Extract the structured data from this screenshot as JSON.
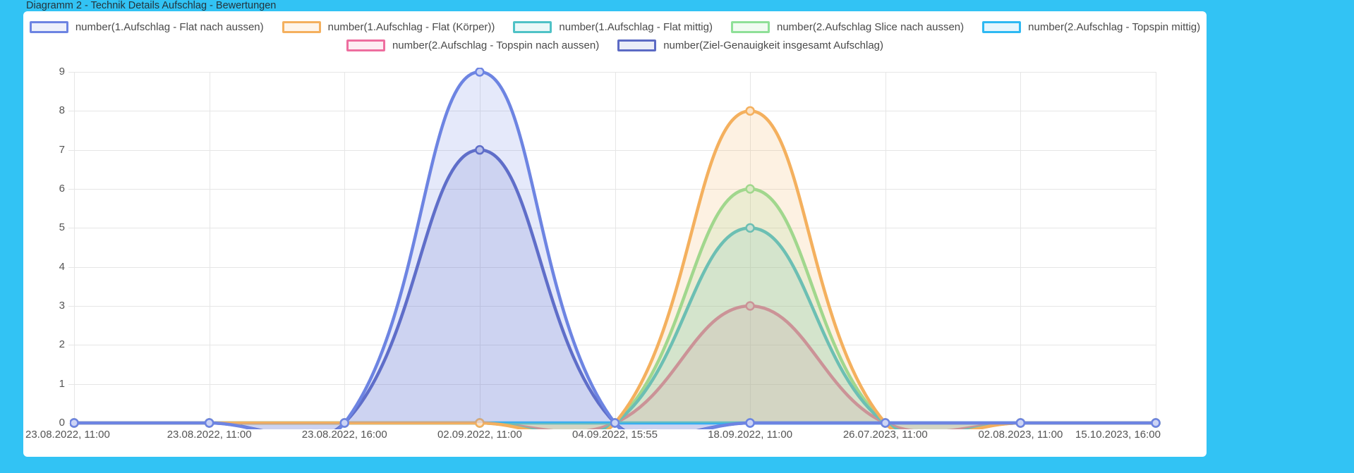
{
  "page": {
    "title": "Diagramm 2 - Technik Details Aufschlag - Bewertungen"
  },
  "colors": {
    "background": "#32c3f4",
    "panel": "#ffffff",
    "title_text": "#23343c",
    "legend_text": "#4a4a4a",
    "axis_text": "#545454",
    "grid": "#e6e6e6"
  },
  "chart_data": {
    "type": "line",
    "title": "Diagramm 2 - Technik Details Aufschlag - Bewertungen",
    "x": [
      "23.08.2022, 11:00",
      "23.08.2022, 11:00",
      "23.08.2022, 16:00",
      "02.09.2022, 11:00",
      "04.09.2022, 15:55",
      "18.09.2022, 11:00",
      "26.07.2023, 11:00",
      "02.08.2023, 11:00",
      "15.10.2023, 16:00"
    ],
    "xlabel": "",
    "ylabel": "",
    "ylim": [
      0,
      9
    ],
    "yticks": [
      0,
      1,
      2,
      3,
      4,
      5,
      6,
      7,
      8,
      9
    ],
    "grid": true,
    "legend_position": "top",
    "curve": "smooth",
    "series": [
      {
        "name": "number(1.Aufschlag - Flat nach aussen)",
        "color": "#6d84e2",
        "values": [
          0,
          0,
          0,
          9,
          0,
          0,
          0,
          0,
          0
        ]
      },
      {
        "name": "number(1.Aufschlag - Flat (Körper))",
        "color": "#f4b05e",
        "values": [
          0,
          0,
          0,
          0,
          0,
          8,
          0,
          0,
          0
        ]
      },
      {
        "name": "number(1.Aufschlag - Flat mittig)",
        "color": "#4fc2c6",
        "values": [
          0,
          0,
          0,
          0,
          0,
          5,
          0,
          0,
          0
        ]
      },
      {
        "name": "number(2.Aufschlag Slice nach aussen)",
        "color": "#8fe098",
        "values": [
          0,
          0,
          0,
          0,
          0,
          6,
          0,
          0,
          0
        ]
      },
      {
        "name": "number(2.Aufschlag - Topspin mittig)",
        "color": "#2eb9f2",
        "values": [
          0,
          0,
          0,
          0,
          0,
          0,
          0,
          0,
          0
        ]
      },
      {
        "name": "number(2.Aufschlag - Topspin nach aussen)",
        "color": "#ee6e9f",
        "values": [
          0,
          0,
          0,
          0,
          0,
          3,
          0,
          0,
          0
        ]
      },
      {
        "name": "number(Ziel-Genauigkeit insgesamt Aufschlag)",
        "color": "#5c6ac4",
        "values": [
          0,
          0,
          0,
          7,
          0,
          0,
          0,
          0,
          0
        ]
      }
    ]
  }
}
